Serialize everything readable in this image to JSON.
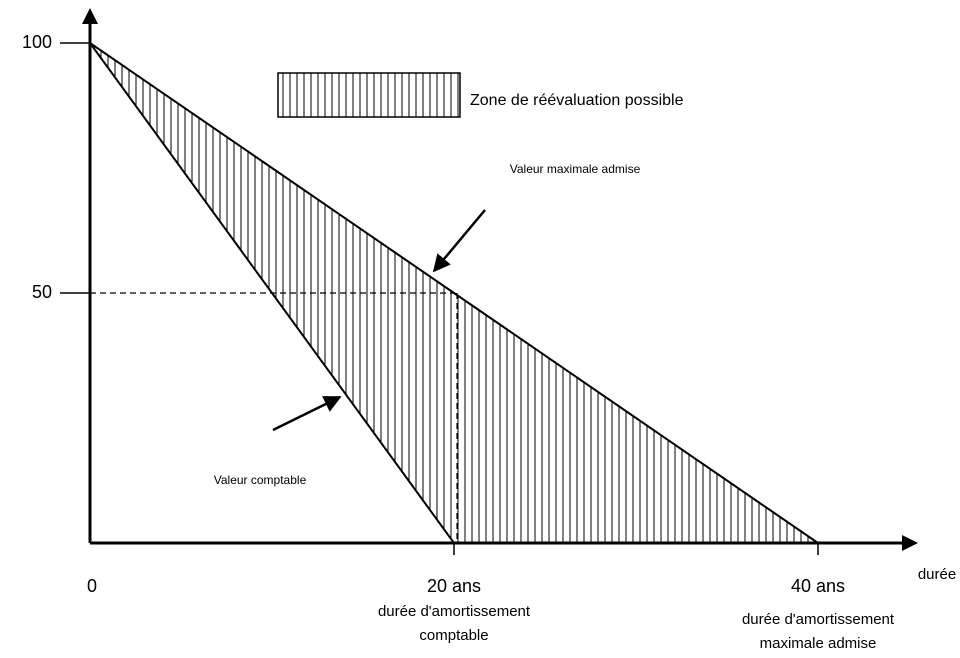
{
  "chart_data": {
    "type": "line",
    "x": [
      0,
      20,
      40
    ],
    "series": [
      {
        "name": "Valeur comptable",
        "color": "#000000",
        "values": [
          100,
          0,
          null
        ]
      },
      {
        "name": "Valeur maximale admise",
        "color": "#000000",
        "values": [
          100,
          50,
          0
        ]
      }
    ],
    "xlim": [
      0,
      40
    ],
    "ylim": [
      0,
      100
    ],
    "xticks": [
      0,
      {
        "value": 20,
        "label": "20 ans"
      },
      {
        "value": 40,
        "label": "40 ans"
      }
    ],
    "yticks": [
      50,
      100
    ],
    "xlabel": "durée",
    "legend_label": "Zone de réévaluation possible",
    "annotations": [
      {
        "x": 20,
        "lines": [
          "durée d'amortissement",
          "comptable"
        ]
      },
      {
        "x": 40,
        "lines": [
          "durée d'amortissement",
          "maximale admise"
        ]
      }
    ]
  }
}
